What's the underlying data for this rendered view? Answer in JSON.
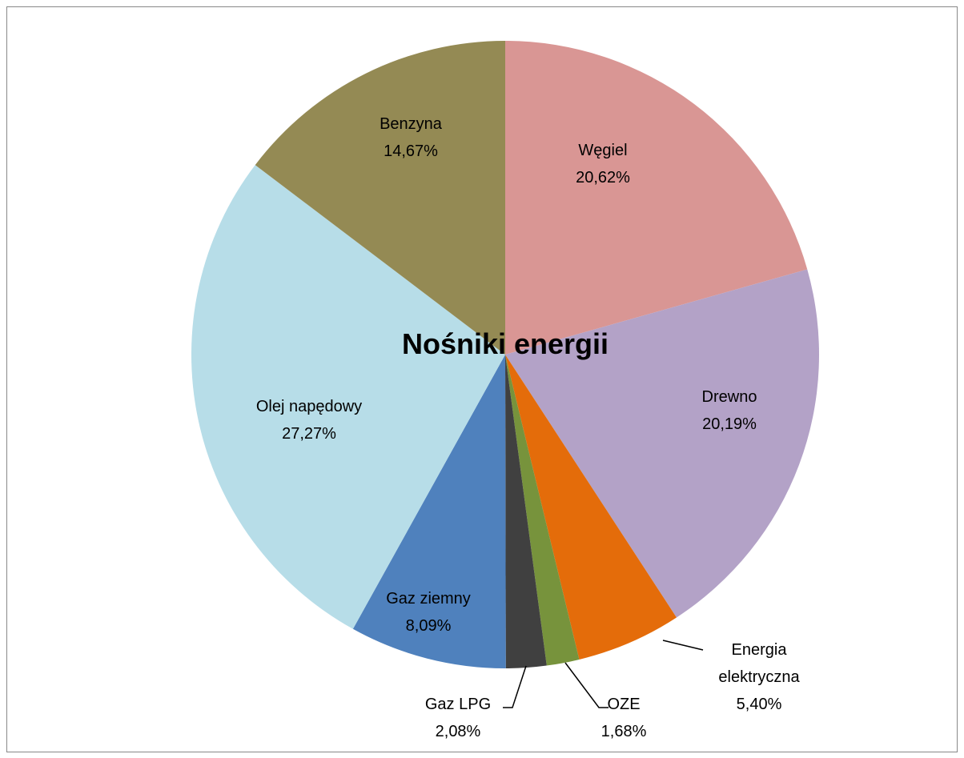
{
  "chart_data": {
    "type": "pie",
    "title": "Nośniki energii",
    "categories": [
      "Węgiel",
      "Drewno",
      "Energia elektryczna",
      "OZE",
      "Gaz LPG",
      "Gaz ziemny",
      "Olej napędowy",
      "Benzyna"
    ],
    "values": [
      20.62,
      20.19,
      5.4,
      1.68,
      2.08,
      8.09,
      27.27,
      14.67
    ],
    "value_labels": [
      "20,62%",
      "20,19%",
      "5,40%",
      "1,68%",
      "2,08%",
      "8,09%",
      "27,27%",
      "14,67%"
    ],
    "colors": [
      "#d99694",
      "#b3a2c7",
      "#e46c0a",
      "#77933c",
      "#404040",
      "#4f81bd",
      "#b7dde8",
      "#948a54"
    ]
  }
}
